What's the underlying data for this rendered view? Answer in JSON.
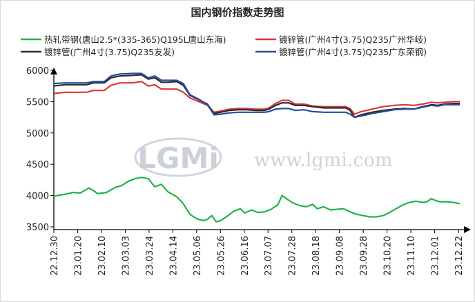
{
  "chart_data": {
    "type": "line",
    "title": "国内钢价指数走势图",
    "xlabel": "",
    "ylabel": "",
    "ylim": [
      3500,
      6000
    ],
    "yticks": [
      3500,
      4000,
      4500,
      5000,
      5500,
      6000
    ],
    "x_ticks": [
      "22.12.30",
      "23.01.20",
      "23.02.10",
      "23.03.03",
      "23.03.24",
      "23.04.14",
      "23.05.06",
      "23.05.26",
      "23.06.16",
      "23.07.07",
      "23.07.28",
      "23.08.18",
      "23.09.08",
      "23.09.28",
      "23.10.20",
      "23.11.10",
      "23.12.01",
      "23.12.22"
    ],
    "legend_position": "top",
    "grid": false,
    "x_count": 246,
    "series": [
      {
        "name": "热轧带钢(唐山2.5*(335-365)Q195L唐山东海)",
        "color": "#21b24b",
        "points": [
          [
            0,
            3990
          ],
          [
            10,
            4020
          ],
          [
            18,
            4050
          ],
          [
            24,
            4040
          ],
          [
            32,
            4120
          ],
          [
            36,
            4080
          ],
          [
            40,
            4030
          ],
          [
            48,
            4050
          ],
          [
            56,
            4130
          ],
          [
            62,
            4160
          ],
          [
            68,
            4230
          ],
          [
            74,
            4270
          ],
          [
            80,
            4290
          ],
          [
            86,
            4270
          ],
          [
            92,
            4140
          ],
          [
            98,
            4180
          ],
          [
            104,
            4060
          ],
          [
            112,
            3980
          ],
          [
            118,
            3870
          ],
          [
            124,
            3700
          ],
          [
            130,
            3630
          ],
          [
            136,
            3600
          ],
          [
            140,
            3620
          ],
          [
            144,
            3680
          ],
          [
            148,
            3580
          ],
          [
            152,
            3600
          ],
          [
            158,
            3670
          ],
          [
            164,
            3750
          ],
          [
            170,
            3790
          ],
          [
            174,
            3720
          ],
          [
            180,
            3770
          ],
          [
            186,
            3730
          ],
          [
            192,
            3740
          ],
          [
            198,
            3780
          ],
          [
            204,
            3850
          ],
          [
            208,
            4000
          ],
          [
            212,
            3950
          ],
          [
            218,
            3880
          ],
          [
            224,
            3840
          ],
          [
            230,
            3820
          ],
          [
            236,
            3860
          ],
          [
            240,
            3790
          ],
          [
            246,
            3820
          ]
        ]
      },
      {
        "name": "镀锌管(广州4寸(3.75)Q235广州华岐)",
        "color": "#d63a3a",
        "points": [
          [
            0,
            5630
          ],
          [
            10,
            5650
          ],
          [
            30,
            5650
          ],
          [
            36,
            5680
          ],
          [
            46,
            5680
          ],
          [
            52,
            5760
          ],
          [
            60,
            5800
          ],
          [
            72,
            5800
          ],
          [
            80,
            5820
          ],
          [
            86,
            5750
          ],
          [
            92,
            5770
          ],
          [
            98,
            5700
          ],
          [
            104,
            5700
          ],
          [
            112,
            5700
          ],
          [
            118,
            5650
          ],
          [
            124,
            5560
          ],
          [
            132,
            5500
          ],
          [
            140,
            5440
          ],
          [
            146,
            5330
          ],
          [
            152,
            5350
          ],
          [
            160,
            5380
          ],
          [
            168,
            5390
          ],
          [
            176,
            5390
          ],
          [
            184,
            5380
          ],
          [
            192,
            5380
          ],
          [
            196,
            5400
          ],
          [
            202,
            5470
          ],
          [
            208,
            5520
          ],
          [
            214,
            5520
          ],
          [
            220,
            5460
          ],
          [
            228,
            5460
          ],
          [
            236,
            5430
          ],
          [
            246,
            5420
          ]
        ]
      },
      {
        "name": "镀锌管(广州4寸(3.75)Q235友发)",
        "color": "#2b2b2b",
        "points": [
          [
            0,
            5750
          ],
          [
            10,
            5770
          ],
          [
            30,
            5770
          ],
          [
            36,
            5800
          ],
          [
            46,
            5800
          ],
          [
            52,
            5880
          ],
          [
            60,
            5910
          ],
          [
            72,
            5920
          ],
          [
            80,
            5930
          ],
          [
            86,
            5860
          ],
          [
            92,
            5880
          ],
          [
            98,
            5810
          ],
          [
            104,
            5810
          ],
          [
            112,
            5820
          ],
          [
            118,
            5760
          ],
          [
            124,
            5600
          ],
          [
            132,
            5530
          ],
          [
            140,
            5460
          ],
          [
            146,
            5310
          ],
          [
            152,
            5330
          ],
          [
            160,
            5360
          ],
          [
            168,
            5370
          ],
          [
            176,
            5370
          ],
          [
            184,
            5360
          ],
          [
            192,
            5360
          ],
          [
            196,
            5380
          ],
          [
            202,
            5440
          ],
          [
            208,
            5480
          ],
          [
            214,
            5480
          ],
          [
            220,
            5440
          ],
          [
            228,
            5440
          ],
          [
            236,
            5420
          ],
          [
            246,
            5400
          ]
        ]
      },
      {
        "name": "镀锌管(广州4寸(3.75)Q235广东荣钢)",
        "color": "#2a4a9e",
        "points": [
          [
            0,
            5790
          ],
          [
            10,
            5800
          ],
          [
            30,
            5800
          ],
          [
            36,
            5820
          ],
          [
            46,
            5820
          ],
          [
            52,
            5910
          ],
          [
            60,
            5940
          ],
          [
            72,
            5950
          ],
          [
            80,
            5950
          ],
          [
            86,
            5880
          ],
          [
            92,
            5910
          ],
          [
            98,
            5840
          ],
          [
            104,
            5840
          ],
          [
            112,
            5840
          ],
          [
            118,
            5790
          ],
          [
            124,
            5610
          ],
          [
            132,
            5540
          ],
          [
            140,
            5450
          ],
          [
            146,
            5290
          ],
          [
            152,
            5300
          ],
          [
            160,
            5320
          ],
          [
            168,
            5330
          ],
          [
            176,
            5330
          ],
          [
            184,
            5330
          ],
          [
            192,
            5330
          ],
          [
            196,
            5340
          ],
          [
            202,
            5380
          ],
          [
            208,
            5390
          ],
          [
            214,
            5390
          ],
          [
            220,
            5360
          ],
          [
            228,
            5370
          ],
          [
            236,
            5340
          ],
          [
            246,
            5330
          ]
        ]
      }
    ],
    "extend_series": [
      [
        [
          246,
          3820
        ],
        [
          252,
          3770
        ],
        [
          258,
          3780
        ],
        [
          264,
          3790
        ],
        [
          270,
          3740
        ],
        [
          276,
          3700
        ],
        [
          282,
          3680
        ],
        [
          288,
          3660
        ],
        [
          294,
          3660
        ],
        [
          300,
          3680
        ],
        [
          306,
          3730
        ],
        [
          312,
          3790
        ],
        [
          318,
          3850
        ],
        [
          324,
          3890
        ],
        [
          330,
          3910
        ],
        [
          336,
          3890
        ],
        [
          340,
          3900
        ],
        [
          344,
          3950
        ],
        [
          348,
          3920
        ],
        [
          352,
          3900
        ],
        [
          358,
          3900
        ],
        [
          364,
          3890
        ],
        [
          370,
          3870
        ]
      ],
      [
        [
          246,
          5420
        ],
        [
          256,
          5420
        ],
        [
          266,
          5420
        ],
        [
          270,
          5390
        ],
        [
          274,
          5300
        ],
        [
          280,
          5340
        ],
        [
          290,
          5380
        ],
        [
          300,
          5420
        ],
        [
          310,
          5440
        ],
        [
          320,
          5450
        ],
        [
          328,
          5440
        ],
        [
          336,
          5460
        ],
        [
          344,
          5490
        ],
        [
          350,
          5480
        ],
        [
          356,
          5490
        ],
        [
          364,
          5500
        ],
        [
          370,
          5500
        ]
      ],
      [
        [
          246,
          5400
        ],
        [
          256,
          5400
        ],
        [
          266,
          5400
        ],
        [
          270,
          5360
        ],
        [
          274,
          5250
        ],
        [
          280,
          5290
        ],
        [
          290,
          5330
        ],
        [
          300,
          5360
        ],
        [
          310,
          5380
        ],
        [
          320,
          5390
        ],
        [
          328,
          5380
        ],
        [
          336,
          5420
        ],
        [
          344,
          5450
        ],
        [
          350,
          5440
        ],
        [
          356,
          5460
        ],
        [
          364,
          5470
        ],
        [
          370,
          5470
        ]
      ],
      [
        [
          246,
          5330
        ],
        [
          256,
          5330
        ],
        [
          266,
          5330
        ],
        [
          270,
          5300
        ],
        [
          274,
          5250
        ],
        [
          280,
          5270
        ],
        [
          290,
          5310
        ],
        [
          300,
          5340
        ],
        [
          310,
          5370
        ],
        [
          320,
          5380
        ],
        [
          328,
          5380
        ],
        [
          336,
          5410
        ],
        [
          344,
          5440
        ],
        [
          350,
          5430
        ],
        [
          356,
          5450
        ],
        [
          364,
          5450
        ],
        [
          370,
          5450
        ]
      ]
    ]
  },
  "watermark": {
    "logo": "LGMi",
    "url": "www.lgmi.com"
  }
}
